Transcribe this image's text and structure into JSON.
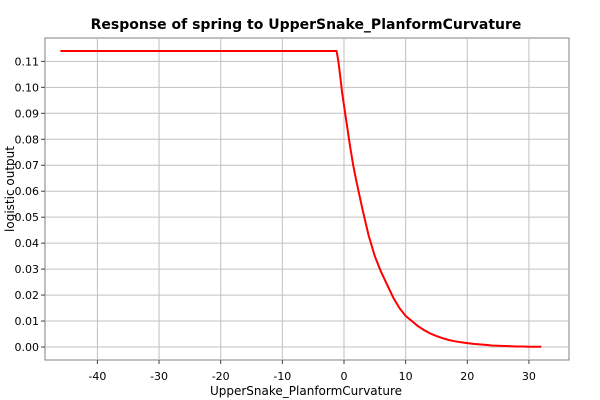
{
  "chart_data": {
    "type": "line",
    "title": "Response of spring to UpperSnake_PlanformCurvature",
    "xlabel": "UpperSnake_PlanformCurvature",
    "ylabel": "logistic output",
    "xlim": [
      -48.5,
      36.5
    ],
    "ylim": [
      -0.005,
      0.119
    ],
    "x_ticks": [
      -40,
      -30,
      -20,
      -10,
      0,
      10,
      20,
      30
    ],
    "y_ticks": [
      0.0,
      0.01,
      0.02,
      0.03,
      0.04,
      0.05,
      0.06,
      0.07,
      0.08,
      0.09,
      0.1,
      0.11
    ],
    "x_tick_labels": [
      "-40",
      "-30",
      "-20",
      "-10",
      "0",
      "10",
      "20",
      "30"
    ],
    "y_tick_labels": [
      "0.00",
      "0.01",
      "0.02",
      "0.03",
      "0.04",
      "0.05",
      "0.06",
      "0.07",
      "0.08",
      "0.09",
      "0.10",
      "0.11"
    ],
    "grid": true,
    "series": [
      {
        "color": "#ff0000",
        "x": [
          -46,
          -1.2,
          -0.9,
          -0.6,
          -0.3,
          0,
          0.5,
          1,
          1.5,
          2,
          3,
          4,
          5,
          6,
          7,
          8,
          9,
          10,
          11,
          12,
          13,
          14,
          15,
          16,
          17,
          18,
          19,
          20,
          21,
          22,
          23,
          24,
          25,
          26,
          27,
          28,
          29,
          30,
          31,
          32
        ],
        "y": [
          0.114,
          0.114,
          0.11,
          0.104,
          0.098,
          0.093,
          0.085,
          0.077,
          0.07,
          0.064,
          0.053,
          0.043,
          0.035,
          0.029,
          0.024,
          0.019,
          0.015,
          0.012,
          0.01,
          0.008,
          0.0065,
          0.0052,
          0.0042,
          0.0034,
          0.0027,
          0.0022,
          0.0018,
          0.0015,
          0.0012,
          0.001,
          0.0008,
          0.0006,
          0.0005,
          0.0004,
          0.0003,
          0.0002,
          0.0002,
          0.0001,
          0.0001,
          0.0001
        ]
      }
    ]
  }
}
